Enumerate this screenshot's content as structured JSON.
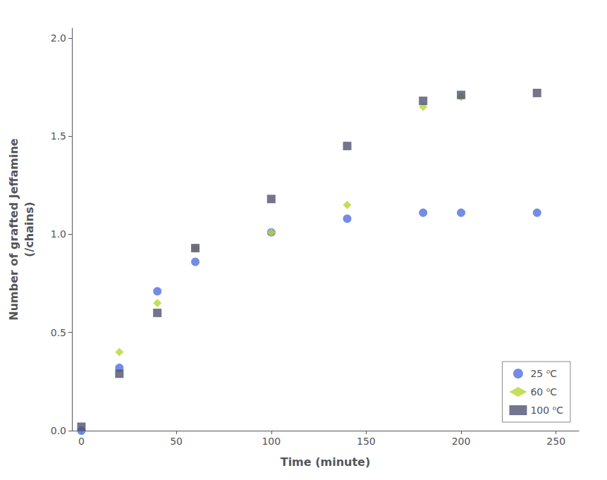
{
  "chart_data": {
    "type": "scatter",
    "xlabel": "Time (minute)",
    "ylabel": "Number of grafted Jeffamine\n(/chains)",
    "series": [
      {
        "name": "25 ⁰C",
        "marker": "circle",
        "x": [
          0,
          20,
          40,
          60,
          100,
          140,
          180,
          200,
          240
        ],
        "values": [
          0,
          0.32,
          0.71,
          0.86,
          1.01,
          1.08,
          1.11,
          1.11,
          1.11
        ]
      },
      {
        "name": "60 ⁰C",
        "marker": "diamond",
        "x": [
          20,
          40,
          60,
          100,
          140,
          180,
          200
        ],
        "values": [
          0.4,
          0.65,
          0.93,
          1.01,
          1.15,
          1.65,
          1.7
        ]
      },
      {
        "name": "100 ⁰C",
        "marker": "square",
        "x": [
          0,
          20,
          40,
          60,
          100,
          140,
          180,
          200,
          240
        ],
        "values": [
          0.02,
          0.29,
          0.6,
          0.93,
          1.18,
          1.45,
          1.68,
          1.71,
          1.72
        ]
      }
    ],
    "xlim": [
      -5,
      262
    ],
    "ylim": [
      0,
      2.05
    ],
    "xticks": [
      0,
      50,
      100,
      150,
      200,
      250
    ],
    "yticks": [
      {
        "value": 0,
        "label": "0.0"
      },
      {
        "value": 0.5,
        "label": "0.5"
      },
      {
        "value": 1.0,
        "label": "1.0"
      },
      {
        "value": 1.5,
        "label": "1.5"
      },
      {
        "value": 2.0,
        "label": "2.0"
      }
    ],
    "grid": false,
    "legend": "lower right"
  }
}
